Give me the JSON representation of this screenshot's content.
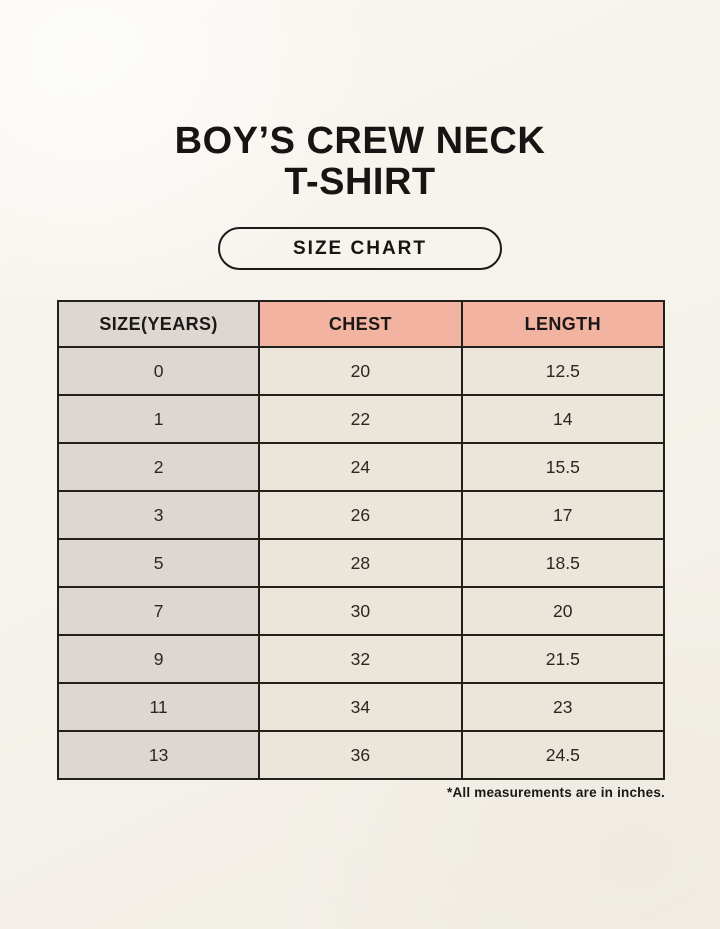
{
  "page": {
    "title_line1": "BOY’S CREW NECK",
    "title_line2": "T-SHIRT",
    "badge_label": "SIZE CHART",
    "footnote": "*All measurements are in inches."
  },
  "colors": {
    "background": "#f5f2eb",
    "size_column_bg": "#ddd6d1",
    "measure_header_bg": "#f2b3a1",
    "value_cell_bg": "#ece5d9",
    "table_border": "#22201d",
    "text": "#1b1917"
  },
  "table": {
    "headers": [
      "SIZE(YEARS)",
      "CHEST",
      "LENGTH"
    ],
    "rows": [
      {
        "size": "0",
        "chest": "20",
        "length": "12.5"
      },
      {
        "size": "1",
        "chest": "22",
        "length": "14"
      },
      {
        "size": "2",
        "chest": "24",
        "length": "15.5"
      },
      {
        "size": "3",
        "chest": "26",
        "length": "17"
      },
      {
        "size": "5",
        "chest": "28",
        "length": "18.5"
      },
      {
        "size": "7",
        "chest": "30",
        "length": "20"
      },
      {
        "size": "9",
        "chest": "32",
        "length": "21.5"
      },
      {
        "size": "11",
        "chest": "34",
        "length": "23"
      },
      {
        "size": "13",
        "chest": "36",
        "length": "24.5"
      }
    ]
  },
  "chart_data": {
    "type": "table",
    "title": "BOY’S CREW NECK T-SHIRT — SIZE CHART",
    "columns": [
      "SIZE(YEARS)",
      "CHEST",
      "LENGTH"
    ],
    "rows": [
      [
        0,
        20,
        12.5
      ],
      [
        1,
        22,
        14
      ],
      [
        2,
        24,
        15.5
      ],
      [
        3,
        26,
        17
      ],
      [
        5,
        28,
        18.5
      ],
      [
        7,
        30,
        20
      ],
      [
        9,
        32,
        21.5
      ],
      [
        11,
        34,
        23
      ],
      [
        13,
        36,
        24.5
      ]
    ],
    "units": "inches",
    "note": "*All measurements are in inches."
  }
}
